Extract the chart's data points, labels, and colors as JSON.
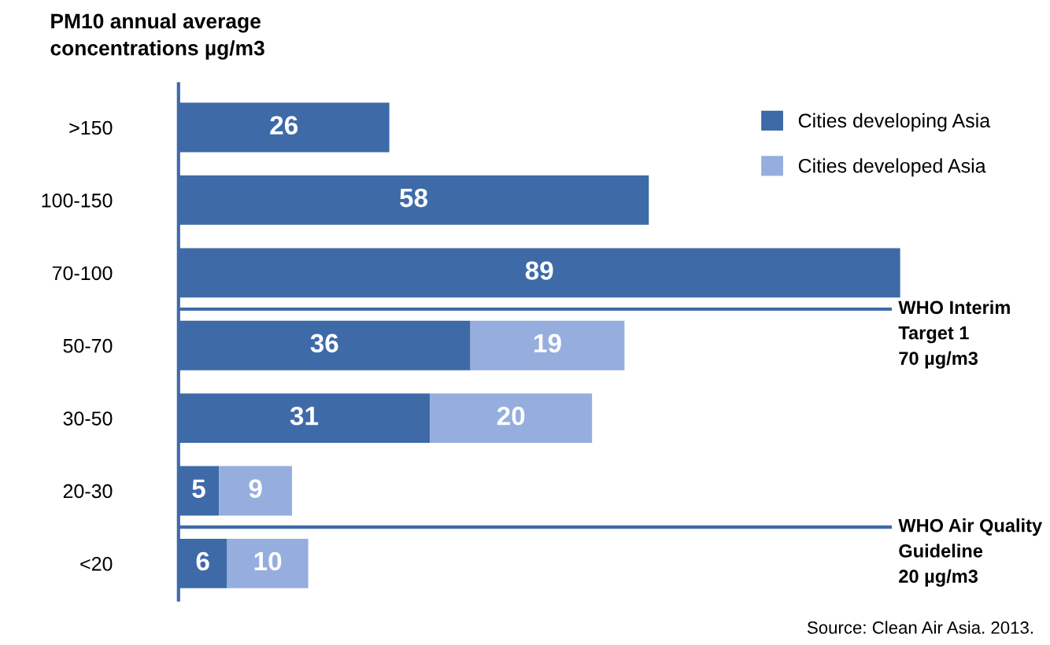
{
  "chart_data": {
    "type": "bar",
    "orientation": "horizontal",
    "stacked": true,
    "title": "PM10 annual average\nconcentrations µg/m3",
    "categories": [
      ">150",
      "100-150",
      "70-100",
      "50-70",
      "30-50",
      "20-30",
      "<20"
    ],
    "series": [
      {
        "name": "Cities developing Asia",
        "color": "#3e6aa8",
        "values": [
          26,
          58,
          89,
          36,
          31,
          5,
          6
        ]
      },
      {
        "name": "Cities developed Asia",
        "color": "#95aede",
        "values": [
          null,
          null,
          null,
          19,
          20,
          9,
          10
        ]
      }
    ],
    "data_labels": true,
    "legend": "top right",
    "grid": false,
    "ref_lines": [
      {
        "axis": "y",
        "value": "70-100",
        "label": "WHO Interim\nTarget 1\n70 µg/m3",
        "color": "#3e6aa8"
      },
      {
        "axis": "y",
        "value": "20-30",
        "label": "WHO Air Quality\nGuideline\n20 µg/m3",
        "color": "#3e6aa8"
      }
    ],
    "annotations": [
      "Source: Clean Air Asia. 2013."
    ]
  }
}
